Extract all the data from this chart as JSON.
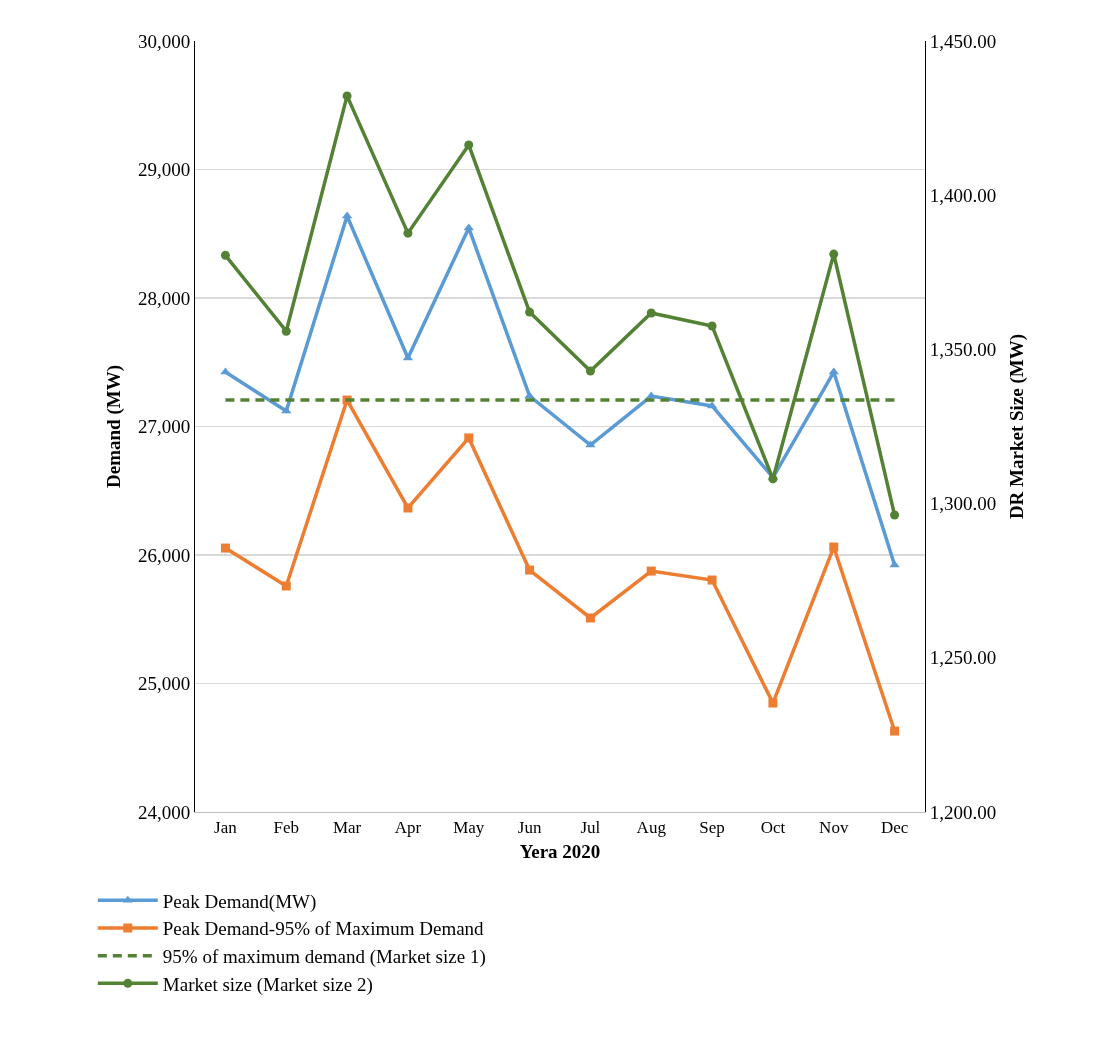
{
  "chart_data": {
    "type": "line",
    "xlabel": "Yera 2020",
    "ylabel": "Demand (MW)",
    "y2label": "DR Market Size (MW)",
    "categories": [
      "Jan",
      "Feb",
      "Mar",
      "Apr",
      "May",
      "Jun",
      "Jul",
      "Aug",
      "Sep",
      "Oct",
      "Nov",
      "Dec"
    ],
    "ylim": [
      24000,
      30000
    ],
    "yticks": [
      {
        "value": 24000,
        "label": "24,000"
      },
      {
        "value": 25000,
        "label": "25,000"
      },
      {
        "value": 26000,
        "label": "26,000"
      },
      {
        "value": 27000,
        "label": "27,000"
      },
      {
        "value": 28000,
        "label": "28,000"
      },
      {
        "value": 29000,
        "label": "29,000"
      },
      {
        "value": 30000,
        "label": "30,000"
      }
    ],
    "y2lim": [
      1200,
      1450
    ],
    "y2ticks": [
      {
        "value": 1200,
        "label": "1,200.00"
      },
      {
        "value": 1250,
        "label": "1,250.00"
      },
      {
        "value": 1300,
        "label": "1,300.00"
      },
      {
        "value": 1350,
        "label": "1,350.00"
      },
      {
        "value": 1400,
        "label": "1,400.00"
      },
      {
        "value": 1450,
        "label": "1,450.00"
      }
    ],
    "grid": "y",
    "legend": "bottom",
    "series": [
      {
        "name": "Peak Demand(MW)",
        "color": "#5b9bd5",
        "marker": "triangle",
        "line_style": "solid",
        "values": [
          27424,
          27121,
          28638,
          27533,
          28545,
          27237,
          26856,
          27237,
          27160,
          26603,
          27424,
          25922
        ]
      },
      {
        "name": "Peak Demand-95% of Maximum Demand",
        "color": "#ed7d31",
        "marker": "square",
        "line_style": "solid",
        "values": [
          26054,
          25759,
          27206,
          26366,
          26911,
          25883,
          25510,
          25875,
          25805,
          24848,
          26062,
          24630
        ]
      },
      {
        "name": "95% of maximum demand (Market size 1)",
        "color": "#548235",
        "marker": "none",
        "line_style": "dashed",
        "values": [
          27206,
          27206,
          27206,
          27206,
          27206,
          27206,
          27206,
          27206,
          27206,
          27206,
          27206,
          27206
        ]
      },
      {
        "name": "Market size (Market size 2)",
        "color": "#548235",
        "marker": "circle",
        "line_style": "solid",
        "axis": "y2",
        "values": [
          1380.5,
          1355.9,
          1432.2,
          1387.7,
          1416.3,
          1362.1,
          1343.0,
          1361.8,
          1357.6,
          1308.0,
          1380.9,
          1296.3
        ]
      }
    ]
  }
}
